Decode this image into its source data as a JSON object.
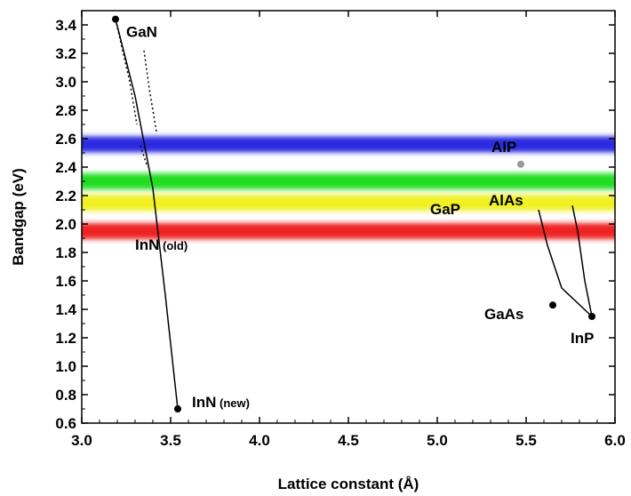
{
  "chart_data": {
    "type": "scatter",
    "xlabel": "Lattice constant (Å)",
    "ylabel": "Bandgap (eV)",
    "xlim": [
      3.0,
      6.0
    ],
    "ylim": [
      0.6,
      3.5
    ],
    "x_ticks": [
      "3.0",
      "3.5",
      "4.0",
      "4.5",
      "5.0",
      "5.5",
      "6.0"
    ],
    "y_ticks": [
      "0.6",
      "0.8",
      "1.0",
      "1.2",
      "1.4",
      "1.6",
      "1.8",
      "2.0",
      "2.2",
      "2.4",
      "2.6",
      "2.8",
      "3.0",
      "3.2",
      "3.4"
    ],
    "bands": [
      {
        "name": "blue",
        "y": 2.56,
        "color": "#2a2ae0"
      },
      {
        "name": "green",
        "y": 2.3,
        "color": "#22dd22"
      },
      {
        "name": "yellow",
        "y": 2.15,
        "color": "#f0f020"
      },
      {
        "name": "red",
        "y": 1.95,
        "color": "#ee2222"
      }
    ],
    "points": [
      {
        "label": "GaN",
        "sub": "",
        "x": 3.19,
        "y": 3.44,
        "color": "#000000"
      },
      {
        "label": "InN",
        "sub": "(new)",
        "x": 3.54,
        "y": 0.7,
        "color": "#000000"
      },
      {
        "label": "AlP",
        "sub": "",
        "x": 5.47,
        "y": 2.42,
        "color": "#999999"
      },
      {
        "label": "GaAs",
        "sub": "",
        "x": 5.65,
        "y": 1.43,
        "color": "#000000"
      },
      {
        "label": "InP",
        "sub": "",
        "x": 5.87,
        "y": 1.35,
        "color": "#000000"
      }
    ],
    "text_labels": [
      {
        "label": "GaP",
        "sub": "",
        "x": 5.25,
        "y": 2.07
      },
      {
        "label": "AlAs",
        "sub": "",
        "x": 5.72,
        "y": 2.13
      },
      {
        "label": "InN",
        "sub": "(old)",
        "x": 3.6,
        "y": 1.82
      }
    ],
    "solid_curves": [
      [
        [
          3.19,
          3.44
        ],
        [
          3.3,
          2.9
        ],
        [
          3.4,
          2.25
        ],
        [
          3.47,
          1.5
        ],
        [
          3.54,
          0.7
        ]
      ],
      [
        [
          5.87,
          1.35
        ],
        [
          5.83,
          1.6
        ],
        [
          5.79,
          1.95
        ],
        [
          5.76,
          2.13
        ]
      ],
      [
        [
          5.87,
          1.35
        ],
        [
          5.7,
          1.55
        ],
        [
          5.62,
          1.85
        ],
        [
          5.57,
          2.1
        ]
      ]
    ],
    "dotted_curves": [
      [
        [
          3.35,
          3.22
        ],
        [
          3.38,
          2.95
        ],
        [
          3.42,
          2.65
        ]
      ],
      [
        [
          3.19,
          3.44
        ],
        [
          3.27,
          3.0
        ],
        [
          3.31,
          2.7
        ]
      ],
      [
        [
          3.33,
          2.55
        ],
        [
          3.37,
          2.4
        ]
      ]
    ]
  }
}
